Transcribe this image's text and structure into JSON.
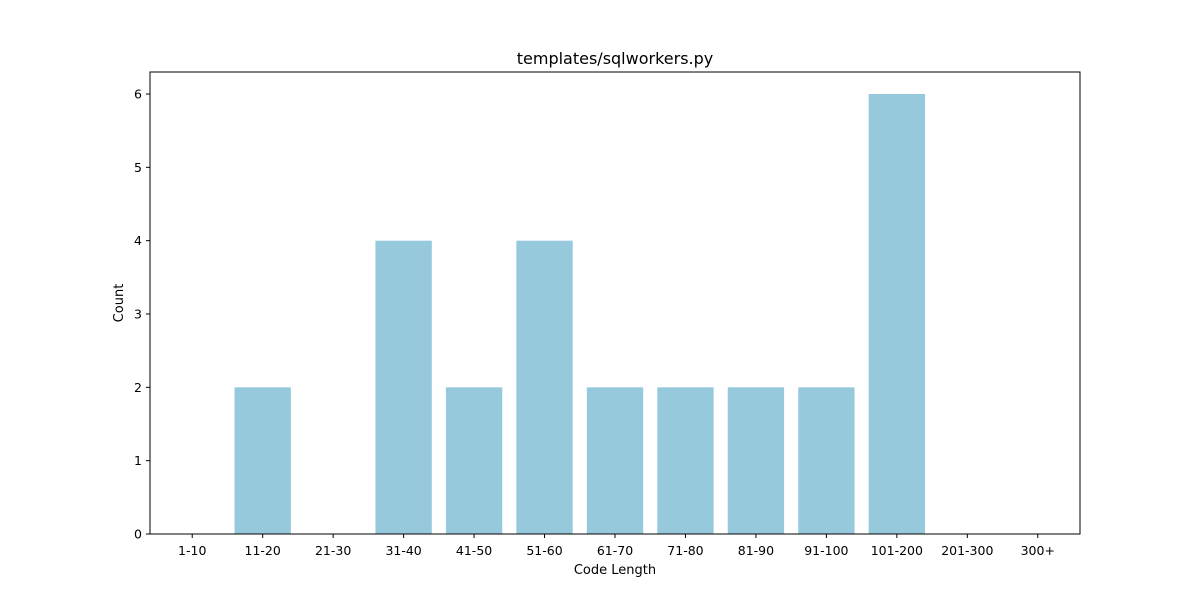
{
  "chart_data": {
    "type": "bar",
    "title": "templates/sqlworkers.py",
    "xlabel": "Code Length",
    "ylabel": "Count",
    "categories": [
      "1-10",
      "11-20",
      "21-30",
      "31-40",
      "41-50",
      "51-60",
      "61-70",
      "71-80",
      "81-90",
      "91-100",
      "101-200",
      "201-300",
      "300+"
    ],
    "values": [
      0,
      2,
      0,
      4,
      2,
      4,
      2,
      2,
      2,
      2,
      6,
      0,
      0
    ],
    "yticks": [
      0,
      1,
      2,
      3,
      4,
      5,
      6
    ],
    "ylim": [
      0,
      6.3
    ],
    "bar_color": "#96c9dc",
    "grid": false,
    "legend": "none"
  }
}
